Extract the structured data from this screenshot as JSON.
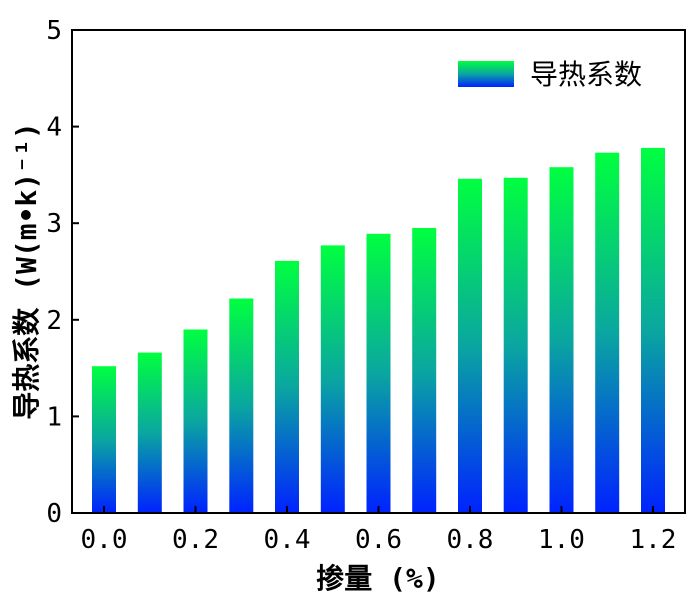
{
  "chart_data": {
    "type": "bar",
    "xlabel": "掺量 (%)",
    "ylabel": "导热系数 (W(m•k)⁻¹)",
    "x": [
      0.0,
      0.1,
      0.2,
      0.3,
      0.4,
      0.5,
      0.6,
      0.7,
      0.8,
      0.9,
      1.0,
      1.1,
      1.2
    ],
    "xticks": [
      "0.0",
      "0.2",
      "0.4",
      "0.6",
      "0.8",
      "1.0",
      "1.2"
    ],
    "yticks": [
      "0",
      "1",
      "2",
      "3",
      "4",
      "5"
    ],
    "ylim": [
      0,
      5
    ],
    "xlim": [
      -0.07,
      1.27
    ],
    "series": [
      {
        "name": "导热系数",
        "values": [
          1.52,
          1.66,
          1.9,
          2.22,
          2.61,
          2.77,
          2.89,
          2.95,
          3.46,
          3.47,
          3.58,
          3.73,
          3.78
        ]
      }
    ],
    "legend_position": "top-right",
    "grid": false,
    "colors": {
      "bar_top": "#00ff40",
      "bar_bottom": "#0022ff",
      "axis": "#000000"
    }
  }
}
